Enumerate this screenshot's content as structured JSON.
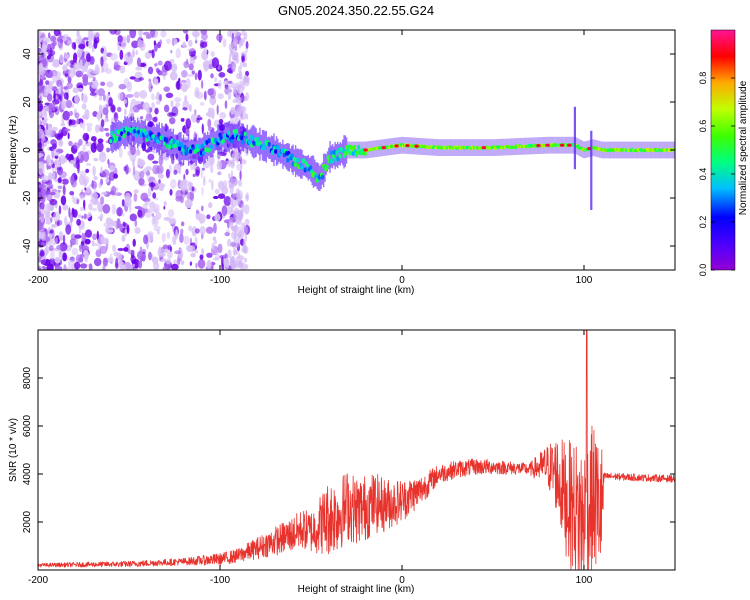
{
  "figure_title": "GN05.2024.350.22.55.G24",
  "colors": {
    "snr_line": "#e8322c",
    "frame": "#000000",
    "colorbar_stops": [
      "#9400d3",
      "#4b00ff",
      "#0000ff",
      "#00bfff",
      "#00ff7f",
      "#7fff00",
      "#ffff00",
      "#ff8c00",
      "#ff0000",
      "#ff1493"
    ]
  },
  "chart_data": [
    {
      "type": "heatmap",
      "title": "GN05.2024.350.22.55.G24",
      "xlabel": "Height of straight line (km)",
      "ylabel": "Frequency (Hz)",
      "xlim": [
        -200,
        150
      ],
      "ylim": [
        -50,
        50
      ],
      "xticks": [
        "-200",
        "-100",
        "0",
        "100"
      ],
      "yticks": [
        "-40",
        "-20",
        "0",
        "20",
        "40"
      ],
      "colorbar": {
        "label": "Normalized spectral amplitude",
        "range": [
          0,
          1
        ],
        "ticks": [
          "0.0",
          "0.2",
          "0.4",
          "0.6",
          "0.8"
        ]
      },
      "ridge": {
        "x": [
          -200,
          -160,
          -150,
          -140,
          -130,
          -120,
          -110,
          -100,
          -90,
          -80,
          -70,
          -60,
          -50,
          -45,
          -40,
          -35,
          -30,
          -20,
          -10,
          0,
          20,
          50,
          80,
          95,
          100,
          105,
          110,
          150
        ],
        "y": [
          0,
          5,
          8,
          6,
          4,
          0,
          0,
          5,
          6,
          3,
          0,
          -4,
          -8,
          -12,
          -3,
          -2,
          0,
          0,
          1,
          2,
          1,
          1,
          2,
          2,
          0,
          1,
          0,
          0
        ]
      },
      "grid": false,
      "legend": "colorbar-right"
    },
    {
      "type": "line",
      "xlabel": "Height of straight line (km)",
      "ylabel": "SNR (10 * v/v)",
      "xlim": [
        -200,
        150
      ],
      "ylim": [
        0,
        10000
      ],
      "xticks": [
        "-200",
        "-100",
        "0",
        "100"
      ],
      "yticks": [
        "2000",
        "4000",
        "6000",
        "8000"
      ],
      "series": [
        {
          "envelope_x": [
            -200,
            -150,
            -120,
            -100,
            -90,
            -80,
            -70,
            -60,
            -55,
            -50,
            -45,
            -40,
            -35,
            -30,
            -25,
            -20,
            -15,
            -10,
            0,
            10,
            20,
            30,
            40,
            50,
            60,
            70,
            80,
            85,
            90,
            95,
            100,
            105,
            110,
            111,
            115,
            130,
            150
          ],
          "envelope_y": [
            200,
            250,
            350,
            450,
            600,
            900,
            1200,
            1500,
            1700,
            1600,
            1900,
            2200,
            2300,
            2700,
            2500,
            2600,
            2800,
            2700,
            2900,
            3300,
            4000,
            4200,
            4300,
            4300,
            4250,
            4200,
            4350,
            4000,
            3000,
            2500,
            2000,
            3000,
            2500,
            3900,
            3900,
            3850,
            3800
          ],
          "noise_x": [
            -200,
            -120,
            -90,
            -70,
            -50,
            -40,
            -20,
            0,
            20,
            70,
            80,
            90,
            100,
            110,
            111,
            150
          ],
          "noise_y": [
            80,
            150,
            300,
            600,
            900,
            1600,
            1400,
            900,
            400,
            250,
            900,
            2400,
            3400,
            2800,
            150,
            150
          ]
        }
      ],
      "annotations": [
        {
          "x": 101.5,
          "y": 10000
        }
      ]
    }
  ]
}
